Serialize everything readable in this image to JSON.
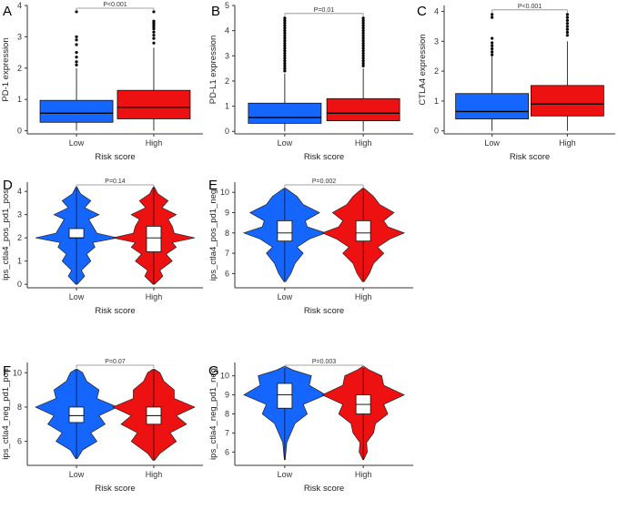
{
  "colors": {
    "low": "#1565ff",
    "high": "#ee1111",
    "axis": "#333333",
    "bracket": "#888888"
  },
  "chart_data": [
    {
      "panel": "A",
      "type": "boxplot",
      "categories": [
        "Low",
        "High"
      ],
      "ylabel": "PD-1 expression",
      "xlabel": "Risk score",
      "ylim": [
        -0.1,
        4.0
      ],
      "yticks": [
        0,
        1,
        2,
        3,
        4
      ],
      "pvalue": "P<0.001",
      "groups": [
        {
          "name": "Low",
          "q1": 0.27,
          "median": 0.56,
          "q3": 0.97,
          "whisker_low": 0.0,
          "whisker_high": 2.0,
          "outliers": [
            2.1,
            2.2,
            2.35,
            2.5,
            2.75,
            2.9,
            3.0,
            3.8
          ]
        },
        {
          "name": "High",
          "q1": 0.38,
          "median": 0.75,
          "q3": 1.29,
          "whisker_low": 0.0,
          "whisker_high": 2.65,
          "outliers": [
            2.8,
            2.95,
            3.05,
            3.15,
            3.25,
            3.32,
            3.38,
            3.44,
            3.5,
            3.8
          ]
        }
      ]
    },
    {
      "panel": "B",
      "type": "boxplot",
      "categories": [
        "Low",
        "High"
      ],
      "ylabel": "PD-L1 expression",
      "xlabel": "Risk score",
      "ylim": [
        -0.1,
        5.0
      ],
      "yticks": [
        0,
        1,
        2,
        3,
        4,
        5
      ],
      "pvalue": "P=0.01",
      "groups": [
        {
          "name": "Low",
          "q1": 0.32,
          "median": 0.55,
          "q3": 1.12,
          "whisker_low": 0.0,
          "whisker_high": 2.3,
          "outliers": [
            2.4,
            2.5,
            2.6,
            2.7,
            2.8,
            2.9,
            3.0,
            3.1,
            3.2,
            3.3,
            3.4,
            3.5,
            3.6,
            3.7,
            3.8,
            3.9,
            4.0,
            4.1,
            4.2,
            4.3,
            4.4,
            4.5
          ]
        },
        {
          "name": "High",
          "q1": 0.42,
          "median": 0.72,
          "q3": 1.3,
          "whisker_low": 0.0,
          "whisker_high": 2.5,
          "outliers": [
            2.6,
            2.7,
            2.8,
            2.9,
            3.0,
            3.1,
            3.2,
            3.3,
            3.4,
            3.5,
            3.6,
            3.7,
            3.8,
            3.9,
            4.0,
            4.1,
            4.2,
            4.3,
            4.4,
            4.5
          ]
        }
      ]
    },
    {
      "panel": "C",
      "type": "boxplot",
      "categories": [
        "Low",
        "High"
      ],
      "ylabel": "CTLA4 expression",
      "xlabel": "Risk score",
      "ylim": [
        -0.1,
        4.2
      ],
      "yticks": [
        0,
        1,
        2,
        3,
        4
      ],
      "pvalue": "P<0.001",
      "groups": [
        {
          "name": "Low",
          "q1": 0.4,
          "median": 0.65,
          "q3": 1.25,
          "whisker_low": 0.0,
          "whisker_high": 2.5,
          "outliers": [
            2.55,
            2.65,
            2.75,
            2.85,
            2.95,
            3.1,
            3.8,
            3.9
          ]
        },
        {
          "name": "High",
          "q1": 0.5,
          "median": 0.9,
          "q3": 1.52,
          "whisker_low": 0.0,
          "whisker_high": 3.0,
          "outliers": [
            3.2,
            3.3,
            3.4,
            3.5,
            3.6,
            3.7,
            3.8,
            3.9
          ]
        }
      ]
    },
    {
      "panel": "D",
      "type": "violin",
      "categories": [
        "Low",
        "High"
      ],
      "ylabel": "ips_ctla4_pos_pd1_pos",
      "xlabel": "Risk score",
      "ylim": [
        -0.15,
        4.4
      ],
      "yticks": [
        0,
        1,
        2,
        3,
        4
      ],
      "pvalue": "P=0.14",
      "groups": [
        {
          "name": "Low",
          "q1": 2.0,
          "median": 2.0,
          "q3": 2.4,
          "range": [
            0,
            4.2
          ],
          "profile": [
            [
              0,
              0.02
            ],
            [
              0.35,
              0.2
            ],
            [
              0.6,
              0.12
            ],
            [
              1.0,
              0.35
            ],
            [
              1.3,
              0.25
            ],
            [
              1.6,
              0.45
            ],
            [
              1.8,
              0.4
            ],
            [
              2.0,
              1.0
            ],
            [
              2.2,
              0.5
            ],
            [
              2.5,
              0.4
            ],
            [
              2.8,
              0.3
            ],
            [
              3.0,
              0.55
            ],
            [
              3.3,
              0.2
            ],
            [
              3.6,
              0.35
            ],
            [
              3.9,
              0.1
            ],
            [
              4.2,
              0.01
            ]
          ]
        },
        {
          "name": "High",
          "q1": 1.4,
          "median": 2.0,
          "q3": 2.5,
          "range": [
            0,
            4.2
          ],
          "profile": [
            [
              0,
              0.02
            ],
            [
              0.35,
              0.22
            ],
            [
              0.6,
              0.15
            ],
            [
              1.0,
              0.45
            ],
            [
              1.3,
              0.3
            ],
            [
              1.6,
              0.55
            ],
            [
              1.8,
              0.45
            ],
            [
              2.0,
              1.0
            ],
            [
              2.2,
              0.5
            ],
            [
              2.5,
              0.45
            ],
            [
              2.8,
              0.35
            ],
            [
              3.0,
              0.55
            ],
            [
              3.3,
              0.2
            ],
            [
              3.6,
              0.35
            ],
            [
              3.9,
              0.1
            ],
            [
              4.2,
              0.01
            ]
          ]
        }
      ]
    },
    {
      "panel": "E",
      "type": "violin",
      "categories": [
        "Low",
        "High"
      ],
      "ylabel": "ips_ctla4_pos_pd1_neg",
      "xlabel": "Risk score",
      "ylim": [
        5.3,
        10.5
      ],
      "yticks": [
        6,
        7,
        8,
        9,
        10
      ],
      "pvalue": "P=0.002",
      "groups": [
        {
          "name": "Low",
          "q1": 7.6,
          "median": 8.0,
          "q3": 8.6,
          "range": [
            5.6,
            10.2
          ],
          "profile": [
            [
              5.6,
              0.02
            ],
            [
              6.0,
              0.15
            ],
            [
              6.5,
              0.25
            ],
            [
              7.0,
              0.45
            ],
            [
              7.3,
              0.3
            ],
            [
              7.7,
              0.6
            ],
            [
              8.0,
              1.0
            ],
            [
              8.3,
              0.55
            ],
            [
              8.6,
              0.5
            ],
            [
              9.0,
              0.85
            ],
            [
              9.4,
              0.45
            ],
            [
              9.8,
              0.3
            ],
            [
              10.2,
              0.02
            ]
          ]
        },
        {
          "name": "High",
          "q1": 7.6,
          "median": 8.0,
          "q3": 8.6,
          "range": [
            5.6,
            10.2
          ],
          "profile": [
            [
              5.6,
              0.02
            ],
            [
              6.0,
              0.15
            ],
            [
              6.5,
              0.25
            ],
            [
              7.0,
              0.5
            ],
            [
              7.3,
              0.35
            ],
            [
              7.7,
              0.65
            ],
            [
              8.0,
              1.0
            ],
            [
              8.3,
              0.6
            ],
            [
              8.6,
              0.5
            ],
            [
              9.0,
              0.75
            ],
            [
              9.4,
              0.4
            ],
            [
              9.8,
              0.25
            ],
            [
              10.2,
              0.02
            ]
          ]
        }
      ]
    },
    {
      "panel": "F",
      "type": "violin",
      "categories": [
        "Low",
        "High"
      ],
      "ylabel": "ips_ctla4_neg_pd1_pos",
      "xlabel": "Risk score",
      "ylim": [
        4.6,
        10.6
      ],
      "yticks": [
        6,
        8,
        10
      ],
      "pvalue": "P=0.07",
      "groups": [
        {
          "name": "Low",
          "q1": 7.1,
          "median": 7.5,
          "q3": 8.0,
          "range": [
            5.0,
            10.2
          ],
          "profile": [
            [
              5.0,
              0.02
            ],
            [
              5.5,
              0.15
            ],
            [
              6.0,
              0.5
            ],
            [
              6.5,
              0.35
            ],
            [
              7.0,
              0.7
            ],
            [
              7.5,
              0.55
            ],
            [
              8.0,
              1.0
            ],
            [
              8.5,
              0.5
            ],
            [
              9.0,
              0.55
            ],
            [
              9.5,
              0.25
            ],
            [
              10.0,
              0.15
            ],
            [
              10.2,
              0.02
            ]
          ]
        },
        {
          "name": "High",
          "q1": 7.0,
          "median": 7.5,
          "q3": 8.0,
          "range": [
            4.9,
            10.2
          ],
          "profile": [
            [
              4.9,
              0.02
            ],
            [
              5.3,
              0.15
            ],
            [
              6.0,
              0.55
            ],
            [
              6.5,
              0.4
            ],
            [
              7.0,
              0.8
            ],
            [
              7.5,
              0.55
            ],
            [
              8.0,
              1.0
            ],
            [
              8.5,
              0.5
            ],
            [
              9.0,
              0.5
            ],
            [
              9.5,
              0.25
            ],
            [
              10.0,
              0.15
            ],
            [
              10.2,
              0.02
            ]
          ]
        }
      ]
    },
    {
      "panel": "G",
      "type": "violin",
      "categories": [
        "Low",
        "High"
      ],
      "ylabel": "ips_ctla4_neg_pd1_neg",
      "xlabel": "Risk score",
      "ylim": [
        5.3,
        10.7
      ],
      "yticks": [
        6,
        7,
        8,
        9,
        10
      ],
      "pvalue": "P=0.003",
      "groups": [
        {
          "name": "Low",
          "q1": 8.3,
          "median": 9.0,
          "q3": 9.6,
          "range": [
            5.6,
            10.5
          ],
          "profile": [
            [
              5.6,
              0.01
            ],
            [
              6.5,
              0.05
            ],
            [
              7.0,
              0.15
            ],
            [
              7.5,
              0.25
            ],
            [
              8.0,
              0.55
            ],
            [
              8.5,
              0.45
            ],
            [
              9.0,
              1.0
            ],
            [
              9.5,
              0.6
            ],
            [
              10.0,
              0.65
            ],
            [
              10.3,
              0.2
            ],
            [
              10.5,
              0.01
            ]
          ]
        },
        {
          "name": "High",
          "q1": 8.0,
          "median": 8.5,
          "q3": 9.0,
          "range": [
            5.6,
            10.5
          ],
          "profile": [
            [
              5.6,
              0.01
            ],
            [
              6.0,
              0.1
            ],
            [
              6.5,
              0.08
            ],
            [
              7.0,
              0.25
            ],
            [
              7.5,
              0.3
            ],
            [
              8.0,
              0.6
            ],
            [
              8.5,
              0.5
            ],
            [
              9.0,
              1.0
            ],
            [
              9.5,
              0.5
            ],
            [
              10.0,
              0.45
            ],
            [
              10.3,
              0.15
            ],
            [
              10.5,
              0.01
            ]
          ]
        }
      ]
    }
  ]
}
